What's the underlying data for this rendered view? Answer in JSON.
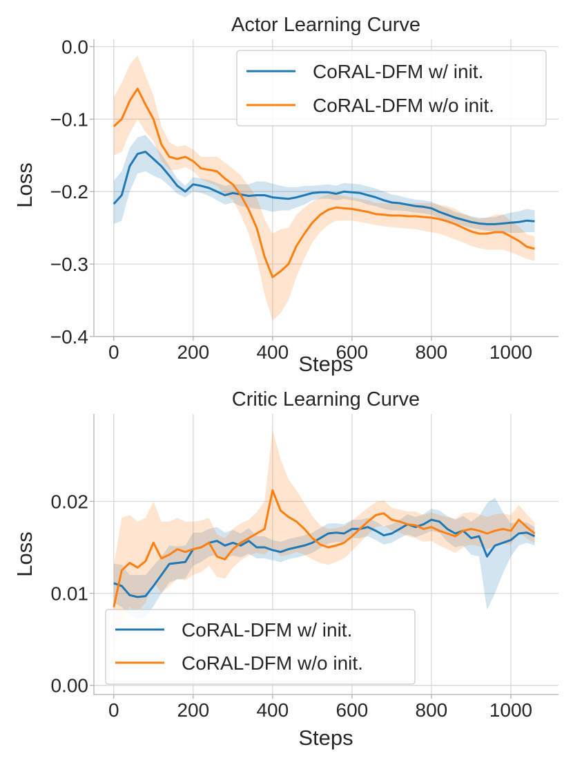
{
  "chart_data": [
    {
      "type": "line",
      "title": "Actor Learning Curve",
      "xlabel": "Steps",
      "ylabel": "Loss",
      "xlim": [
        -50,
        1120
      ],
      "ylim": [
        -0.4,
        0.01
      ],
      "xticks": [
        0,
        200,
        400,
        600,
        800,
        1000
      ],
      "xtick_labels": [
        "0",
        "200",
        "400",
        "600",
        "800",
        "1000"
      ],
      "yticks": [
        0.0,
        -0.1,
        -0.2,
        -0.3,
        -0.4
      ],
      "ytick_labels": [
        "0.0",
        "−0.1",
        "−0.2",
        "−0.3",
        "−0.4"
      ],
      "grid": true,
      "legend_position": "top-right",
      "series": [
        {
          "name": "CoRAL-DFM w/ init.",
          "color": "#1f77b4",
          "x": [
            0,
            20,
            40,
            60,
            80,
            100,
            120,
            140,
            160,
            180,
            200,
            220,
            240,
            260,
            280,
            300,
            320,
            340,
            360,
            380,
            400,
            420,
            440,
            460,
            480,
            500,
            520,
            540,
            560,
            580,
            600,
            620,
            640,
            660,
            680,
            700,
            720,
            740,
            760,
            780,
            800,
            820,
            840,
            860,
            880,
            900,
            920,
            940,
            960,
            980,
            1000,
            1020,
            1040,
            1060
          ],
          "values": [
            -0.217,
            -0.205,
            -0.165,
            -0.148,
            -0.145,
            -0.155,
            -0.165,
            -0.178,
            -0.192,
            -0.2,
            -0.19,
            -0.192,
            -0.195,
            -0.2,
            -0.205,
            -0.202,
            -0.204,
            -0.206,
            -0.205,
            -0.205,
            -0.208,
            -0.209,
            -0.21,
            -0.208,
            -0.205,
            -0.202,
            -0.201,
            -0.201,
            -0.203,
            -0.2,
            -0.201,
            -0.202,
            -0.205,
            -0.208,
            -0.212,
            -0.215,
            -0.216,
            -0.218,
            -0.22,
            -0.221,
            -0.223,
            -0.228,
            -0.232,
            -0.236,
            -0.239,
            -0.242,
            -0.244,
            -0.245,
            -0.245,
            -0.244,
            -0.243,
            -0.242,
            -0.24,
            -0.241
          ],
          "lower": [
            -0.245,
            -0.24,
            -0.2,
            -0.175,
            -0.172,
            -0.178,
            -0.183,
            -0.192,
            -0.203,
            -0.208,
            -0.2,
            -0.202,
            -0.206,
            -0.212,
            -0.218,
            -0.215,
            -0.22,
            -0.222,
            -0.224,
            -0.225,
            -0.228,
            -0.226,
            -0.226,
            -0.222,
            -0.218,
            -0.212,
            -0.21,
            -0.21,
            -0.212,
            -0.21,
            -0.212,
            -0.214,
            -0.218,
            -0.22,
            -0.224,
            -0.226,
            -0.226,
            -0.227,
            -0.229,
            -0.23,
            -0.232,
            -0.237,
            -0.241,
            -0.244,
            -0.247,
            -0.25,
            -0.252,
            -0.254,
            -0.255,
            -0.256,
            -0.257,
            -0.257,
            -0.256,
            -0.256
          ],
          "upper": [
            -0.185,
            -0.172,
            -0.14,
            -0.125,
            -0.122,
            -0.135,
            -0.148,
            -0.165,
            -0.182,
            -0.192,
            -0.18,
            -0.182,
            -0.184,
            -0.188,
            -0.192,
            -0.19,
            -0.19,
            -0.19,
            -0.186,
            -0.186,
            -0.189,
            -0.192,
            -0.194,
            -0.194,
            -0.192,
            -0.192,
            -0.191,
            -0.19,
            -0.192,
            -0.188,
            -0.189,
            -0.19,
            -0.193,
            -0.196,
            -0.2,
            -0.204,
            -0.206,
            -0.209,
            -0.211,
            -0.212,
            -0.214,
            -0.219,
            -0.223,
            -0.228,
            -0.231,
            -0.234,
            -0.236,
            -0.236,
            -0.235,
            -0.232,
            -0.229,
            -0.227,
            -0.224,
            -0.226
          ]
        },
        {
          "name": "CoRAL-DFM w/o init.",
          "color": "#ff7f0e",
          "x": [
            0,
            20,
            40,
            60,
            80,
            100,
            120,
            140,
            160,
            180,
            200,
            220,
            240,
            260,
            280,
            300,
            320,
            340,
            360,
            380,
            400,
            420,
            440,
            460,
            480,
            500,
            520,
            540,
            560,
            580,
            600,
            620,
            640,
            660,
            680,
            700,
            720,
            740,
            760,
            780,
            800,
            820,
            840,
            860,
            880,
            900,
            920,
            940,
            960,
            980,
            1000,
            1020,
            1040,
            1060
          ],
          "values": [
            -0.11,
            -0.1,
            -0.075,
            -0.058,
            -0.08,
            -0.1,
            -0.135,
            -0.152,
            -0.155,
            -0.152,
            -0.158,
            -0.168,
            -0.17,
            -0.172,
            -0.182,
            -0.19,
            -0.205,
            -0.225,
            -0.25,
            -0.29,
            -0.318,
            -0.31,
            -0.3,
            -0.275,
            -0.258,
            -0.243,
            -0.232,
            -0.225,
            -0.222,
            -0.223,
            -0.224,
            -0.226,
            -0.228,
            -0.231,
            -0.232,
            -0.233,
            -0.233,
            -0.234,
            -0.234,
            -0.235,
            -0.236,
            -0.238,
            -0.241,
            -0.245,
            -0.25,
            -0.255,
            -0.258,
            -0.258,
            -0.256,
            -0.256,
            -0.262,
            -0.268,
            -0.276,
            -0.279
          ],
          "lower": [
            -0.15,
            -0.145,
            -0.12,
            -0.1,
            -0.118,
            -0.13,
            -0.158,
            -0.17,
            -0.17,
            -0.166,
            -0.172,
            -0.183,
            -0.188,
            -0.192,
            -0.203,
            -0.212,
            -0.232,
            -0.258,
            -0.292,
            -0.342,
            -0.378,
            -0.368,
            -0.35,
            -0.318,
            -0.292,
            -0.27,
            -0.256,
            -0.246,
            -0.24,
            -0.24,
            -0.24,
            -0.242,
            -0.244,
            -0.246,
            -0.248,
            -0.249,
            -0.25,
            -0.251,
            -0.252,
            -0.254,
            -0.256,
            -0.258,
            -0.262,
            -0.266,
            -0.27,
            -0.275,
            -0.278,
            -0.28,
            -0.28,
            -0.28,
            -0.284,
            -0.288,
            -0.293,
            -0.296
          ],
          "upper": [
            -0.07,
            -0.05,
            -0.025,
            -0.012,
            -0.04,
            -0.068,
            -0.11,
            -0.132,
            -0.138,
            -0.136,
            -0.142,
            -0.152,
            -0.152,
            -0.152,
            -0.16,
            -0.168,
            -0.178,
            -0.192,
            -0.208,
            -0.238,
            -0.258,
            -0.252,
            -0.25,
            -0.232,
            -0.222,
            -0.214,
            -0.208,
            -0.204,
            -0.204,
            -0.206,
            -0.208,
            -0.21,
            -0.212,
            -0.216,
            -0.216,
            -0.217,
            -0.216,
            -0.217,
            -0.216,
            -0.216,
            -0.216,
            -0.218,
            -0.22,
            -0.224,
            -0.23,
            -0.235,
            -0.238,
            -0.236,
            -0.232,
            -0.232,
            -0.24,
            -0.248,
            -0.259,
            -0.262
          ]
        }
      ]
    },
    {
      "type": "line",
      "title": "Critic Learning Curve",
      "xlabel": "Steps",
      "ylabel": "Loss",
      "xlim": [
        -50,
        1120
      ],
      "ylim": [
        -0.001,
        0.0295
      ],
      "xticks": [
        0,
        200,
        400,
        600,
        800,
        1000
      ],
      "xtick_labels": [
        "0",
        "200",
        "400",
        "600",
        "800",
        "1000"
      ],
      "yticks": [
        0.0,
        0.01,
        0.02
      ],
      "ytick_labels": [
        "0.00",
        "0.01",
        "0.02"
      ],
      "grid": true,
      "legend_position": "bottom-left",
      "series": [
        {
          "name": "CoRAL-DFM w/ init.",
          "color": "#1f77b4",
          "x": [
            0,
            20,
            40,
            60,
            80,
            100,
            120,
            140,
            160,
            180,
            200,
            220,
            240,
            260,
            280,
            300,
            320,
            340,
            360,
            380,
            400,
            420,
            440,
            460,
            480,
            500,
            520,
            540,
            560,
            580,
            600,
            620,
            640,
            660,
            680,
            700,
            720,
            740,
            760,
            780,
            800,
            820,
            840,
            860,
            880,
            900,
            920,
            940,
            960,
            980,
            1000,
            1020,
            1040,
            1060
          ],
          "values": [
            0.0111,
            0.0108,
            0.0098,
            0.0096,
            0.0097,
            0.0108,
            0.012,
            0.0132,
            0.0133,
            0.0134,
            0.0148,
            0.015,
            0.0155,
            0.0157,
            0.0152,
            0.0155,
            0.0152,
            0.0157,
            0.015,
            0.015,
            0.0147,
            0.0145,
            0.0148,
            0.015,
            0.0152,
            0.0155,
            0.016,
            0.0165,
            0.0166,
            0.0165,
            0.017,
            0.017,
            0.0172,
            0.0168,
            0.0163,
            0.0165,
            0.017,
            0.0175,
            0.0172,
            0.0175,
            0.018,
            0.0178,
            0.017,
            0.0165,
            0.0168,
            0.016,
            0.0162,
            0.014,
            0.0152,
            0.0155,
            0.0158,
            0.0165,
            0.0166,
            0.0162
          ],
          "lower": [
            0.009,
            0.0085,
            0.0076,
            0.0072,
            0.0074,
            0.0086,
            0.01,
            0.0112,
            0.0115,
            0.0116,
            0.013,
            0.0134,
            0.014,
            0.0142,
            0.0138,
            0.0141,
            0.0139,
            0.0143,
            0.0138,
            0.0138,
            0.0136,
            0.0134,
            0.0137,
            0.0139,
            0.0141,
            0.0144,
            0.0149,
            0.0154,
            0.0156,
            0.0155,
            0.016,
            0.016,
            0.0162,
            0.0158,
            0.0153,
            0.0155,
            0.016,
            0.0164,
            0.0161,
            0.0164,
            0.0168,
            0.0166,
            0.0156,
            0.015,
            0.0152,
            0.0142,
            0.014,
            0.0082,
            0.01,
            0.0122,
            0.014,
            0.0152,
            0.0155,
            0.0152
          ],
          "upper": [
            0.0132,
            0.0131,
            0.012,
            0.012,
            0.012,
            0.013,
            0.014,
            0.0152,
            0.0151,
            0.0152,
            0.0166,
            0.0166,
            0.017,
            0.0172,
            0.0166,
            0.0169,
            0.0165,
            0.0171,
            0.0162,
            0.0162,
            0.0158,
            0.0156,
            0.0159,
            0.0161,
            0.0163,
            0.0166,
            0.0171,
            0.0176,
            0.0176,
            0.0175,
            0.018,
            0.018,
            0.0182,
            0.0178,
            0.0173,
            0.0175,
            0.018,
            0.0186,
            0.0183,
            0.0186,
            0.0192,
            0.019,
            0.0184,
            0.018,
            0.0184,
            0.0178,
            0.0184,
            0.0198,
            0.0204,
            0.0188,
            0.0176,
            0.0178,
            0.0177,
            0.0172
          ]
        },
        {
          "name": "CoRAL-DFM w/o init.",
          "color": "#ff7f0e",
          "x": [
            0,
            20,
            40,
            60,
            80,
            100,
            120,
            140,
            160,
            180,
            200,
            220,
            240,
            260,
            280,
            300,
            320,
            340,
            360,
            380,
            400,
            420,
            440,
            460,
            480,
            500,
            520,
            540,
            560,
            580,
            600,
            620,
            640,
            660,
            680,
            700,
            720,
            740,
            760,
            780,
            800,
            820,
            840,
            860,
            880,
            900,
            920,
            940,
            960,
            980,
            1000,
            1020,
            1040,
            1060
          ],
          "values": [
            0.0085,
            0.0125,
            0.0133,
            0.0128,
            0.0135,
            0.0155,
            0.0138,
            0.0142,
            0.0148,
            0.0145,
            0.0148,
            0.015,
            0.0155,
            0.014,
            0.0137,
            0.0148,
            0.0155,
            0.016,
            0.0165,
            0.017,
            0.0212,
            0.019,
            0.0183,
            0.0178,
            0.017,
            0.016,
            0.0153,
            0.015,
            0.0152,
            0.0155,
            0.0162,
            0.017,
            0.0178,
            0.0185,
            0.0187,
            0.018,
            0.0178,
            0.0175,
            0.0174,
            0.017,
            0.0172,
            0.0168,
            0.0165,
            0.0162,
            0.0168,
            0.017,
            0.0168,
            0.0165,
            0.0168,
            0.017,
            0.0168,
            0.018,
            0.0172,
            0.0165
          ],
          "lower": [
            0.004,
            0.007,
            0.0085,
            0.008,
            0.009,
            0.0112,
            0.01,
            0.0108,
            0.0116,
            0.0114,
            0.012,
            0.0123,
            0.013,
            0.0118,
            0.0116,
            0.0128,
            0.0136,
            0.0141,
            0.0144,
            0.0142,
            0.015,
            0.014,
            0.0142,
            0.0145,
            0.0142,
            0.0137,
            0.0133,
            0.0131,
            0.0134,
            0.0138,
            0.0146,
            0.0155,
            0.0164,
            0.0172,
            0.0174,
            0.0168,
            0.0166,
            0.0162,
            0.016,
            0.0156,
            0.0157,
            0.0152,
            0.0148,
            0.0144,
            0.015,
            0.0153,
            0.0151,
            0.0148,
            0.0151,
            0.0154,
            0.0153,
            0.0166,
            0.016,
            0.0154
          ],
          "upper": [
            0.013,
            0.0182,
            0.0185,
            0.0178,
            0.0182,
            0.02,
            0.0178,
            0.0178,
            0.0182,
            0.0178,
            0.0178,
            0.0179,
            0.0182,
            0.0164,
            0.016,
            0.017,
            0.0176,
            0.018,
            0.0188,
            0.02,
            0.0278,
            0.0246,
            0.0224,
            0.0212,
            0.0198,
            0.0184,
            0.0174,
            0.017,
            0.0171,
            0.0173,
            0.0179,
            0.0186,
            0.0193,
            0.0199,
            0.0201,
            0.0193,
            0.0191,
            0.0189,
            0.0189,
            0.0185,
            0.0188,
            0.0185,
            0.0183,
            0.0181,
            0.0187,
            0.0188,
            0.0186,
            0.0183,
            0.0186,
            0.0187,
            0.0185,
            0.0196,
            0.0186,
            0.0177
          ]
        }
      ]
    }
  ]
}
